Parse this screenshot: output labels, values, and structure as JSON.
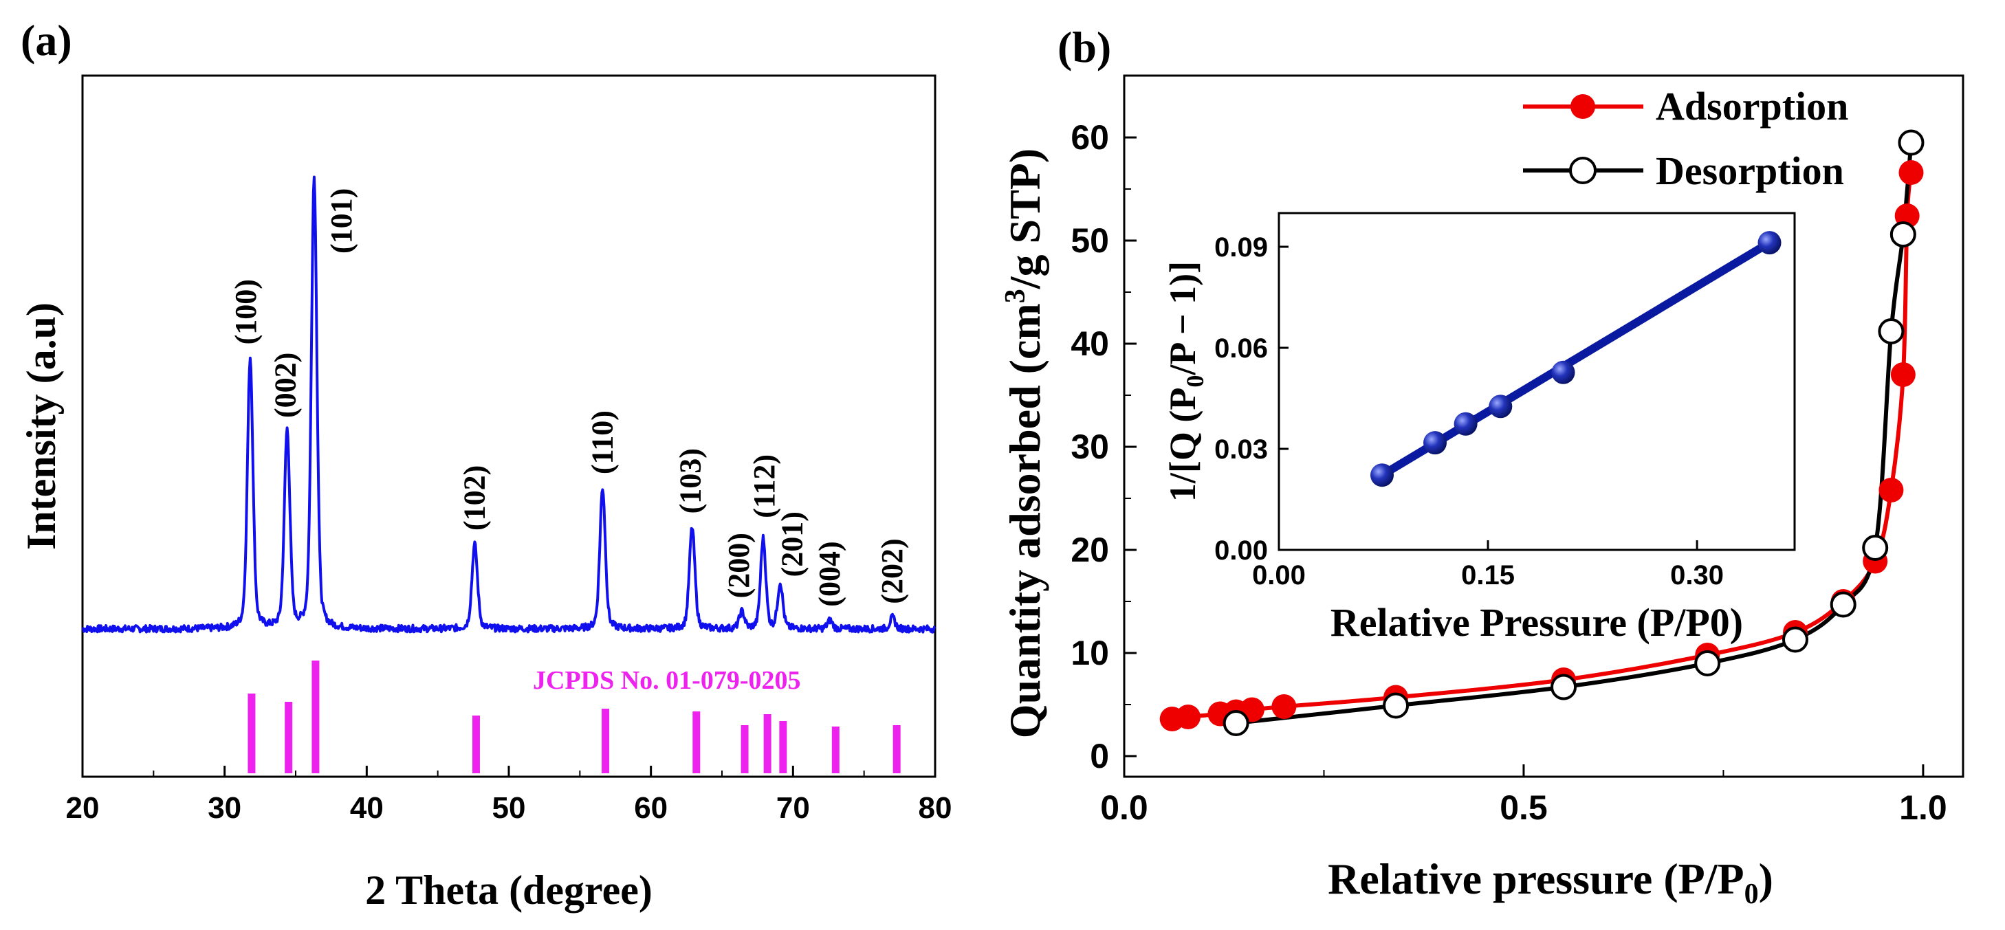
{
  "colors": {
    "xrd_line": "#1010ee",
    "reference_sticks": "#ee22ee",
    "reference_text": "#ee22ee",
    "adsorption": "#ee0000",
    "desorption": "#000000",
    "inset": "#0a1aa0"
  },
  "panel_labels": {
    "a": "(a)",
    "b": "(b)"
  },
  "chart_data": [
    {
      "type": "line",
      "panel": "(a)",
      "title": "",
      "xlabel": "2 Theta (degree)",
      "ylabel": "Intensity (a.u)",
      "xlim": [
        20,
        80
      ],
      "xticks": [
        "20",
        "30",
        "40",
        "50",
        "60",
        "70",
        "80"
      ],
      "baseline": 0.0,
      "peaks": [
        {
          "label": "(100)",
          "two_theta": 31.8,
          "intensity": 0.48,
          "width": 0.32
        },
        {
          "label": "(002)",
          "two_theta": 34.4,
          "intensity": 0.35,
          "width": 0.32
        },
        {
          "label": "(101)",
          "two_theta": 36.3,
          "intensity": 0.8,
          "width": 0.32
        },
        {
          "label": "(102)",
          "two_theta": 47.6,
          "intensity": 0.15,
          "width": 0.32
        },
        {
          "label": "(110)",
          "two_theta": 56.6,
          "intensity": 0.25,
          "width": 0.32
        },
        {
          "label": "(103)",
          "two_theta": 62.9,
          "intensity": 0.18,
          "width": 0.32
        },
        {
          "label": "(200)",
          "two_theta": 66.4,
          "intensity": 0.03,
          "width": 0.3
        },
        {
          "label": "(112)",
          "two_theta": 67.9,
          "intensity": 0.16,
          "width": 0.3
        },
        {
          "label": "(201)",
          "two_theta": 69.1,
          "intensity": 0.08,
          "width": 0.3
        },
        {
          "label": "(004)",
          "two_theta": 72.6,
          "intensity": 0.015,
          "width": 0.3
        },
        {
          "label": "(202)",
          "two_theta": 77.0,
          "intensity": 0.02,
          "width": 0.3
        }
      ],
      "reference": {
        "label": "JCPDS No. 01-079-0205",
        "sticks": [
          {
            "two_theta": 31.9,
            "height": 0.58
          },
          {
            "two_theta": 34.5,
            "height": 0.52
          },
          {
            "two_theta": 36.4,
            "height": 0.82
          },
          {
            "two_theta": 47.7,
            "height": 0.42
          },
          {
            "two_theta": 56.8,
            "height": 0.47
          },
          {
            "two_theta": 63.2,
            "height": 0.45
          },
          {
            "two_theta": 66.6,
            "height": 0.35
          },
          {
            "two_theta": 68.2,
            "height": 0.43
          },
          {
            "two_theta": 69.3,
            "height": 0.38
          },
          {
            "two_theta": 73.0,
            "height": 0.34
          },
          {
            "two_theta": 77.3,
            "height": 0.35
          }
        ]
      }
    },
    {
      "type": "line",
      "panel": "(b)",
      "title": "",
      "xlabel": "Relative pressure (P/P",
      "xlabel_sub": "0",
      "xlabel_end": ")",
      "ylabel": "Quantity adsorbed (cm",
      "ylabel_sup": "3",
      "ylabel_end": "/g STP)",
      "xlim": [
        0.0,
        1.05
      ],
      "ylim": [
        -2,
        66
      ],
      "xticks": [
        "0.0",
        "0.5",
        "1.0"
      ],
      "yticks": [
        "0",
        "10",
        "20",
        "30",
        "40",
        "50",
        "60"
      ],
      "legend": [
        "Adsorption",
        "Desorption"
      ],
      "legend_position": "top-right",
      "series": [
        {
          "name": "Adsorption",
          "x": [
            0.06,
            0.08,
            0.12,
            0.14,
            0.16,
            0.2,
            0.34,
            0.55,
            0.73,
            0.84,
            0.9,
            0.94,
            0.96,
            0.975,
            0.98,
            0.985
          ],
          "y": [
            3.6,
            3.8,
            4.1,
            4.3,
            4.5,
            4.8,
            5.7,
            7.4,
            9.8,
            12.0,
            15.0,
            18.9,
            25.8,
            37.0,
            52.4,
            56.6
          ]
        },
        {
          "name": "Desorption",
          "x": [
            0.14,
            0.34,
            0.55,
            0.73,
            0.84,
            0.9,
            0.94,
            0.96,
            0.975,
            0.985
          ],
          "y": [
            3.2,
            4.9,
            6.7,
            9.0,
            11.3,
            14.7,
            20.2,
            41.2,
            50.6,
            59.5
          ]
        }
      ],
      "inset": {
        "type": "scatter",
        "xlabel": "Relative Pressure (P/P0)",
        "ylabel": "1/[Q (P",
        "ylabel_sub": "0",
        "ylabel_end": "/P − 1)]",
        "xlim": [
          0.0,
          0.37
        ],
        "ylim": [
          0.0,
          0.1
        ],
        "xticks": [
          "0.00",
          "0.15",
          "0.30"
        ],
        "yticks": [
          "0.00",
          "0.03",
          "0.06",
          "0.09"
        ],
        "x": [
          0.074,
          0.112,
          0.134,
          0.159,
          0.204,
          0.352
        ],
        "y": [
          0.0222,
          0.0318,
          0.0374,
          0.0426,
          0.0527,
          0.0912
        ],
        "fit": {
          "x": [
            0.074,
            0.352
          ],
          "y": [
            0.0222,
            0.0912
          ]
        }
      }
    }
  ]
}
